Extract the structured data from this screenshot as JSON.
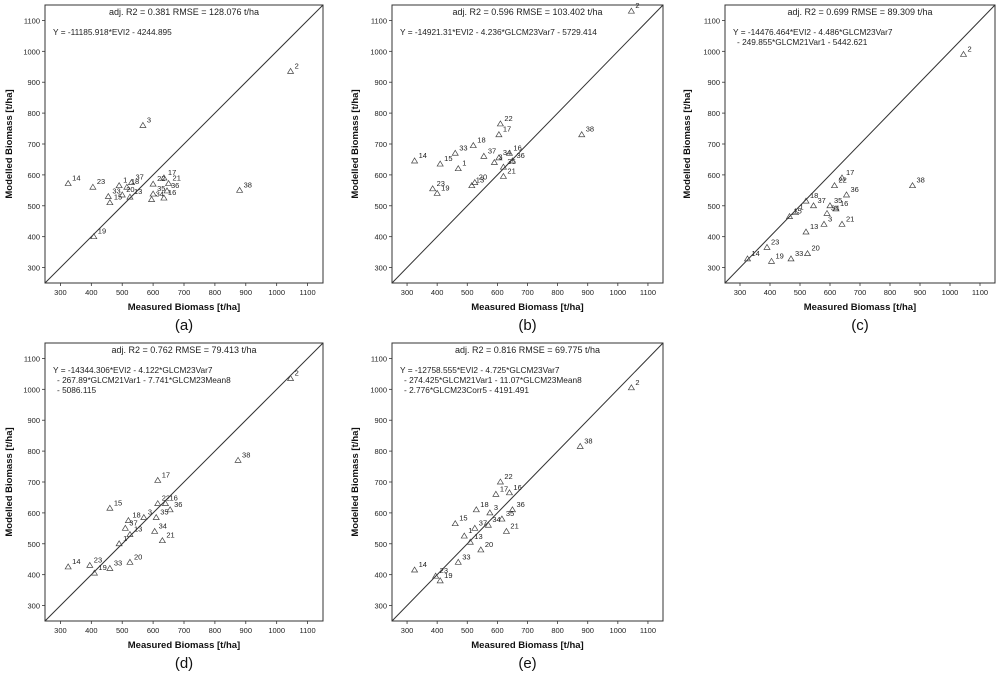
{
  "figure": {
    "xlabel": "Measured Biomass [t/ha]",
    "ylabel": "Modelled Biomass [t/ha]"
  },
  "chart_data": [
    {
      "type": "scatter",
      "panel": "(a)",
      "title": "adj. R2 = 0.381   RMSE = 128.076 t/ha",
      "equation": [
        "Y = -11185.918*EVI2 - 4244.895"
      ],
      "xlabel": "Measured Biomass [t/ha]",
      "ylabel": "Modelled Biomass [t/ha]",
      "xlim": [
        250,
        1150
      ],
      "ylim": [
        250,
        1150
      ],
      "xticks": [
        300,
        400,
        500,
        600,
        700,
        800,
        900,
        1000,
        1100
      ],
      "yticks": [
        300,
        400,
        500,
        600,
        700,
        800,
        900,
        1000,
        1100
      ],
      "reference_line": "1:1",
      "points": [
        {
          "label": "2",
          "x": 1045,
          "y": 935
        },
        {
          "label": "3",
          "x": 567,
          "y": 760
        },
        {
          "label": "14",
          "x": 325,
          "y": 572
        },
        {
          "label": "23",
          "x": 405,
          "y": 560
        },
        {
          "label": "37",
          "x": 530,
          "y": 575
        },
        {
          "label": "17",
          "x": 635,
          "y": 590
        },
        {
          "label": "22",
          "x": 600,
          "y": 570
        },
        {
          "label": "21",
          "x": 650,
          "y": 572
        },
        {
          "label": "33",
          "x": 455,
          "y": 530
        },
        {
          "label": "1",
          "x": 490,
          "y": 565
        },
        {
          "label": "18",
          "x": 515,
          "y": 560
        },
        {
          "label": "15",
          "x": 460,
          "y": 510
        },
        {
          "label": "20",
          "x": 500,
          "y": 535
        },
        {
          "label": "13",
          "x": 525,
          "y": 528
        },
        {
          "label": "35",
          "x": 600,
          "y": 538
        },
        {
          "label": "34",
          "x": 595,
          "y": 520
        },
        {
          "label": "36",
          "x": 645,
          "y": 548
        },
        {
          "label": "16",
          "x": 635,
          "y": 525
        },
        {
          "label": "19",
          "x": 408,
          "y": 400
        },
        {
          "label": "38",
          "x": 880,
          "y": 550
        }
      ]
    },
    {
      "type": "scatter",
      "panel": "(b)",
      "title": "adj. R2 = 0.596   RMSE = 103.402 t/ha",
      "equation": [
        "Y = -14921.31*EVI2 - 4.236*GLCM23Var7 - 5729.414"
      ],
      "xlabel": "Measured Biomass [t/ha]",
      "ylabel": "Modelled Biomass [t/ha]",
      "xlim": [
        250,
        1150
      ],
      "ylim": [
        250,
        1150
      ],
      "xticks": [
        300,
        400,
        500,
        600,
        700,
        800,
        900,
        1000,
        1100
      ],
      "yticks": [
        300,
        400,
        500,
        600,
        700,
        800,
        900,
        1000,
        1100
      ],
      "reference_line": "1:1",
      "points": [
        {
          "label": "2",
          "x": 1045,
          "y": 1130
        },
        {
          "label": "38",
          "x": 880,
          "y": 730
        },
        {
          "label": "22",
          "x": 610,
          "y": 765
        },
        {
          "label": "17",
          "x": 605,
          "y": 730
        },
        {
          "label": "14",
          "x": 325,
          "y": 645
        },
        {
          "label": "33",
          "x": 460,
          "y": 670
        },
        {
          "label": "18",
          "x": 520,
          "y": 695
        },
        {
          "label": "37",
          "x": 555,
          "y": 660
        },
        {
          "label": "34",
          "x": 605,
          "y": 655
        },
        {
          "label": "15",
          "x": 410,
          "y": 635
        },
        {
          "label": "1",
          "x": 470,
          "y": 620
        },
        {
          "label": "3",
          "x": 590,
          "y": 640
        },
        {
          "label": "35",
          "x": 620,
          "y": 625
        },
        {
          "label": "16",
          "x": 640,
          "y": 670
        },
        {
          "label": "36",
          "x": 650,
          "y": 645
        },
        {
          "label": "21",
          "x": 620,
          "y": 595
        },
        {
          "label": "23",
          "x": 385,
          "y": 555
        },
        {
          "label": "19",
          "x": 400,
          "y": 540
        },
        {
          "label": "20",
          "x": 525,
          "y": 575
        },
        {
          "label": "13",
          "x": 515,
          "y": 565
        }
      ]
    },
    {
      "type": "scatter",
      "panel": "(c)",
      "title": "adj. R2 = 0.699   RMSE = 89.309 t/ha",
      "equation": [
        "Y = -14476.464*EVI2 - 4.486*GLCM23Var7",
        "- 249.855*GLCM21Var1 - 5442.621"
      ],
      "xlabel": "Measured Biomass [t/ha]",
      "ylabel": "Modelled Biomass [t/ha]",
      "xlim": [
        250,
        1150
      ],
      "ylim": [
        250,
        1150
      ],
      "xticks": [
        300,
        400,
        500,
        600,
        700,
        800,
        900,
        1000,
        1100
      ],
      "yticks": [
        300,
        400,
        500,
        600,
        700,
        800,
        900,
        1000,
        1100
      ],
      "reference_line": "1:1",
      "points": [
        {
          "label": "2",
          "x": 1045,
          "y": 990
        },
        {
          "label": "38",
          "x": 875,
          "y": 565
        },
        {
          "label": "17",
          "x": 640,
          "y": 590
        },
        {
          "label": "22",
          "x": 615,
          "y": 565
        },
        {
          "label": "36",
          "x": 655,
          "y": 535
        },
        {
          "label": "18",
          "x": 520,
          "y": 515
        },
        {
          "label": "37",
          "x": 545,
          "y": 500
        },
        {
          "label": "1",
          "x": 485,
          "y": 478
        },
        {
          "label": "15",
          "x": 465,
          "y": 465
        },
        {
          "label": "35",
          "x": 600,
          "y": 500
        },
        {
          "label": "16",
          "x": 620,
          "y": 490
        },
        {
          "label": "34",
          "x": 590,
          "y": 475
        },
        {
          "label": "21",
          "x": 640,
          "y": 440
        },
        {
          "label": "3",
          "x": 580,
          "y": 440
        },
        {
          "label": "13",
          "x": 520,
          "y": 415
        },
        {
          "label": "23",
          "x": 390,
          "y": 365
        },
        {
          "label": "14",
          "x": 325,
          "y": 328
        },
        {
          "label": "19",
          "x": 405,
          "y": 320
        },
        {
          "label": "33",
          "x": 470,
          "y": 328
        },
        {
          "label": "20",
          "x": 525,
          "y": 345
        }
      ]
    },
    {
      "type": "scatter",
      "panel": "(d)",
      "title": "adj. R2 = 0.762   RMSE = 79.413 t/ha",
      "equation": [
        "Y = -14344.306*EVI2 - 4.122*GLCM23Var7",
        "- 267.89*GLCM21Var1 - 7.741*GLCM23Mean8",
        "- 5086.115"
      ],
      "xlabel": "Measured Biomass [t/ha]",
      "ylabel": "Modelled Biomass [t/ha]",
      "xlim": [
        250,
        1150
      ],
      "ylim": [
        250,
        1150
      ],
      "xticks": [
        300,
        400,
        500,
        600,
        700,
        800,
        900,
        1000,
        1100
      ],
      "yticks": [
        300,
        400,
        500,
        600,
        700,
        800,
        900,
        1000,
        1100
      ],
      "reference_line": "1:1",
      "points": [
        {
          "label": "2",
          "x": 1045,
          "y": 1035
        },
        {
          "label": "38",
          "x": 875,
          "y": 770
        },
        {
          "label": "17",
          "x": 615,
          "y": 705
        },
        {
          "label": "15",
          "x": 460,
          "y": 615
        },
        {
          "label": "22",
          "x": 615,
          "y": 630
        },
        {
          "label": "16",
          "x": 640,
          "y": 630
        },
        {
          "label": "36",
          "x": 655,
          "y": 610
        },
        {
          "label": "18",
          "x": 520,
          "y": 575
        },
        {
          "label": "3",
          "x": 570,
          "y": 585
        },
        {
          "label": "35",
          "x": 610,
          "y": 585
        },
        {
          "label": "37",
          "x": 510,
          "y": 550
        },
        {
          "label": "13",
          "x": 525,
          "y": 530
        },
        {
          "label": "1",
          "x": 490,
          "y": 500
        },
        {
          "label": "34",
          "x": 605,
          "y": 540
        },
        {
          "label": "21",
          "x": 630,
          "y": 510
        },
        {
          "label": "14",
          "x": 325,
          "y": 425
        },
        {
          "label": "23",
          "x": 395,
          "y": 430
        },
        {
          "label": "19",
          "x": 410,
          "y": 405
        },
        {
          "label": "33",
          "x": 460,
          "y": 420
        },
        {
          "label": "20",
          "x": 525,
          "y": 440
        }
      ]
    },
    {
      "type": "scatter",
      "panel": "(e)",
      "title": "adj. R2 = 0.816   RMSE = 69.775 t/ha",
      "equation": [
        "Y = -12758.555*EVI2 - 4.725*GLCM23Var7",
        "- 274.425*GLCM21Var1 - 11.07*GLCM23Mean8",
        "- 2.776*GLCM23Corr5 - 4191.491"
      ],
      "xlabel": "Measured Biomass [t/ha]",
      "ylabel": "Modelled Biomass [t/ha]",
      "xlim": [
        250,
        1150
      ],
      "ylim": [
        250,
        1150
      ],
      "xticks": [
        300,
        400,
        500,
        600,
        700,
        800,
        900,
        1000,
        1100
      ],
      "yticks": [
        300,
        400,
        500,
        600,
        700,
        800,
        900,
        1000,
        1100
      ],
      "reference_line": "1:1",
      "points": [
        {
          "label": "2",
          "x": 1045,
          "y": 1005
        },
        {
          "label": "38",
          "x": 875,
          "y": 815
        },
        {
          "label": "22",
          "x": 610,
          "y": 700
        },
        {
          "label": "16",
          "x": 640,
          "y": 665
        },
        {
          "label": "17",
          "x": 595,
          "y": 660
        },
        {
          "label": "18",
          "x": 530,
          "y": 610
        },
        {
          "label": "36",
          "x": 650,
          "y": 610
        },
        {
          "label": "15",
          "x": 460,
          "y": 565
        },
        {
          "label": "3",
          "x": 575,
          "y": 600
        },
        {
          "label": "35",
          "x": 615,
          "y": 580
        },
        {
          "label": "37",
          "x": 525,
          "y": 550
        },
        {
          "label": "34",
          "x": 570,
          "y": 560
        },
        {
          "label": "21",
          "x": 630,
          "y": 540
        },
        {
          "label": "1",
          "x": 490,
          "y": 525
        },
        {
          "label": "13",
          "x": 510,
          "y": 505
        },
        {
          "label": "20",
          "x": 545,
          "y": 480
        },
        {
          "label": "33",
          "x": 470,
          "y": 440
        },
        {
          "label": "14",
          "x": 325,
          "y": 415
        },
        {
          "label": "23",
          "x": 395,
          "y": 395
        },
        {
          "label": "19",
          "x": 410,
          "y": 380
        }
      ]
    }
  ]
}
